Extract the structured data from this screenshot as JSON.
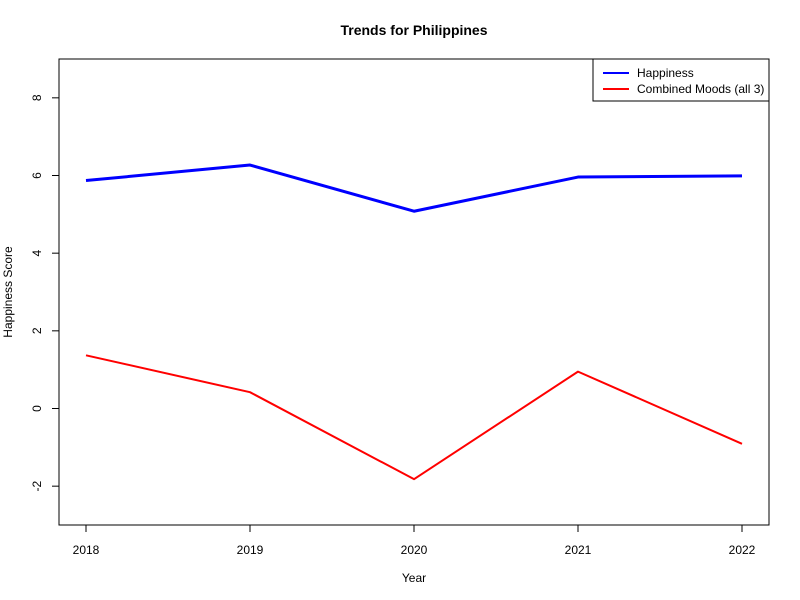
{
  "chart_data": {
    "type": "line",
    "title": "Trends for Philippines",
    "xlabel": "Year",
    "ylabel": "Happiness Score",
    "x": [
      2018,
      2019,
      2020,
      2021,
      2022
    ],
    "x_tick_labels": [
      "2018",
      "2019",
      "2020",
      "2021",
      "2022"
    ],
    "xlim": [
      2018,
      2022
    ],
    "ylim": [
      -3,
      9
    ],
    "y_ticks": [
      -2,
      0,
      2,
      4,
      6,
      8
    ],
    "y_tick_labels": [
      "-2",
      "0",
      "2",
      "4",
      "6",
      "8"
    ],
    "grid": false,
    "legend": {
      "position": "top-right"
    },
    "series": [
      {
        "name": "Happiness",
        "color": "#0000ff",
        "line_style": "thick",
        "values": [
          5.87,
          6.27,
          5.08,
          5.96,
          5.99
        ]
      },
      {
        "name": "Combined Moods (all 3)",
        "color": "#ff0000",
        "line_style": "normal",
        "values": [
          1.37,
          0.42,
          -1.82,
          0.95,
          -0.91
        ]
      }
    ]
  }
}
